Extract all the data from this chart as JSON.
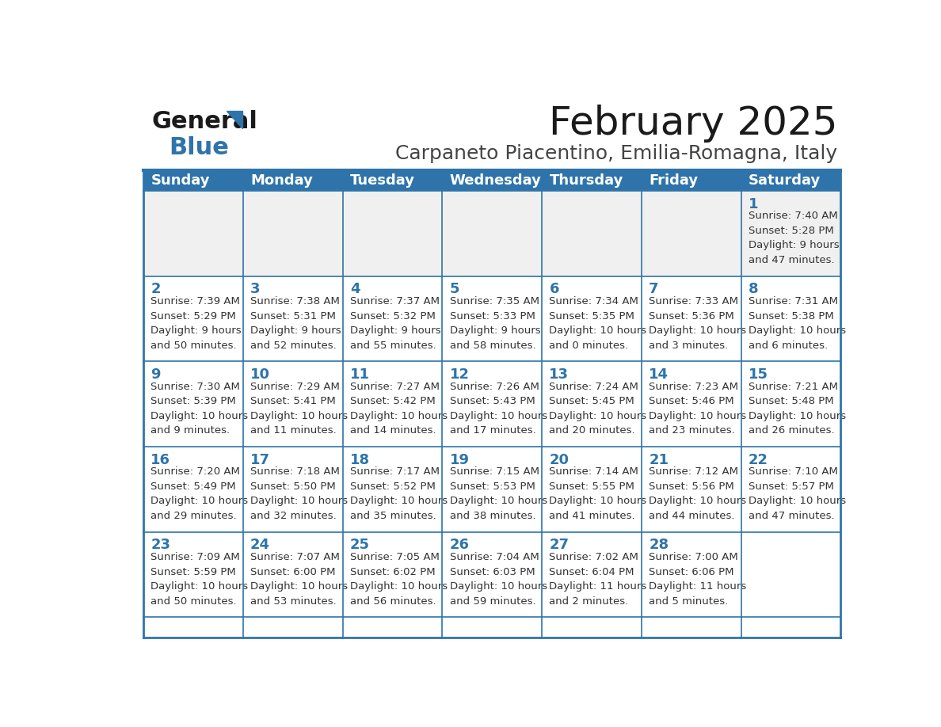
{
  "title": "February 2025",
  "subtitle": "Carpaneto Piacentino, Emilia-Romagna, Italy",
  "header_bg_color": "#2E74AA",
  "header_text_color": "#FFFFFF",
  "cell_bg_color": "#FFFFFF",
  "alt_cell_bg_color": "#F0F0F0",
  "day_number_color": "#2E74AA",
  "cell_text_color": "#333333",
  "border_color": "#2E74AA",
  "days_of_week": [
    "Sunday",
    "Monday",
    "Tuesday",
    "Wednesday",
    "Thursday",
    "Friday",
    "Saturday"
  ],
  "weeks": [
    [
      {
        "day": 0,
        "text": ""
      },
      {
        "day": 0,
        "text": ""
      },
      {
        "day": 0,
        "text": ""
      },
      {
        "day": 0,
        "text": ""
      },
      {
        "day": 0,
        "text": ""
      },
      {
        "day": 0,
        "text": ""
      },
      {
        "day": 1,
        "text": "Sunrise: 7:40 AM\nSunset: 5:28 PM\nDaylight: 9 hours\nand 47 minutes."
      }
    ],
    [
      {
        "day": 2,
        "text": "Sunrise: 7:39 AM\nSunset: 5:29 PM\nDaylight: 9 hours\nand 50 minutes."
      },
      {
        "day": 3,
        "text": "Sunrise: 7:38 AM\nSunset: 5:31 PM\nDaylight: 9 hours\nand 52 minutes."
      },
      {
        "day": 4,
        "text": "Sunrise: 7:37 AM\nSunset: 5:32 PM\nDaylight: 9 hours\nand 55 minutes."
      },
      {
        "day": 5,
        "text": "Sunrise: 7:35 AM\nSunset: 5:33 PM\nDaylight: 9 hours\nand 58 minutes."
      },
      {
        "day": 6,
        "text": "Sunrise: 7:34 AM\nSunset: 5:35 PM\nDaylight: 10 hours\nand 0 minutes."
      },
      {
        "day": 7,
        "text": "Sunrise: 7:33 AM\nSunset: 5:36 PM\nDaylight: 10 hours\nand 3 minutes."
      },
      {
        "day": 8,
        "text": "Sunrise: 7:31 AM\nSunset: 5:38 PM\nDaylight: 10 hours\nand 6 minutes."
      }
    ],
    [
      {
        "day": 9,
        "text": "Sunrise: 7:30 AM\nSunset: 5:39 PM\nDaylight: 10 hours\nand 9 minutes."
      },
      {
        "day": 10,
        "text": "Sunrise: 7:29 AM\nSunset: 5:41 PM\nDaylight: 10 hours\nand 11 minutes."
      },
      {
        "day": 11,
        "text": "Sunrise: 7:27 AM\nSunset: 5:42 PM\nDaylight: 10 hours\nand 14 minutes."
      },
      {
        "day": 12,
        "text": "Sunrise: 7:26 AM\nSunset: 5:43 PM\nDaylight: 10 hours\nand 17 minutes."
      },
      {
        "day": 13,
        "text": "Sunrise: 7:24 AM\nSunset: 5:45 PM\nDaylight: 10 hours\nand 20 minutes."
      },
      {
        "day": 14,
        "text": "Sunrise: 7:23 AM\nSunset: 5:46 PM\nDaylight: 10 hours\nand 23 minutes."
      },
      {
        "day": 15,
        "text": "Sunrise: 7:21 AM\nSunset: 5:48 PM\nDaylight: 10 hours\nand 26 minutes."
      }
    ],
    [
      {
        "day": 16,
        "text": "Sunrise: 7:20 AM\nSunset: 5:49 PM\nDaylight: 10 hours\nand 29 minutes."
      },
      {
        "day": 17,
        "text": "Sunrise: 7:18 AM\nSunset: 5:50 PM\nDaylight: 10 hours\nand 32 minutes."
      },
      {
        "day": 18,
        "text": "Sunrise: 7:17 AM\nSunset: 5:52 PM\nDaylight: 10 hours\nand 35 minutes."
      },
      {
        "day": 19,
        "text": "Sunrise: 7:15 AM\nSunset: 5:53 PM\nDaylight: 10 hours\nand 38 minutes."
      },
      {
        "day": 20,
        "text": "Sunrise: 7:14 AM\nSunset: 5:55 PM\nDaylight: 10 hours\nand 41 minutes."
      },
      {
        "day": 21,
        "text": "Sunrise: 7:12 AM\nSunset: 5:56 PM\nDaylight: 10 hours\nand 44 minutes."
      },
      {
        "day": 22,
        "text": "Sunrise: 7:10 AM\nSunset: 5:57 PM\nDaylight: 10 hours\nand 47 minutes."
      }
    ],
    [
      {
        "day": 23,
        "text": "Sunrise: 7:09 AM\nSunset: 5:59 PM\nDaylight: 10 hours\nand 50 minutes."
      },
      {
        "day": 24,
        "text": "Sunrise: 7:07 AM\nSunset: 6:00 PM\nDaylight: 10 hours\nand 53 minutes."
      },
      {
        "day": 25,
        "text": "Sunrise: 7:05 AM\nSunset: 6:02 PM\nDaylight: 10 hours\nand 56 minutes."
      },
      {
        "day": 26,
        "text": "Sunrise: 7:04 AM\nSunset: 6:03 PM\nDaylight: 10 hours\nand 59 minutes."
      },
      {
        "day": 27,
        "text": "Sunrise: 7:02 AM\nSunset: 6:04 PM\nDaylight: 11 hours\nand 2 minutes."
      },
      {
        "day": 28,
        "text": "Sunrise: 7:00 AM\nSunset: 6:06 PM\nDaylight: 11 hours\nand 5 minutes."
      },
      {
        "day": 0,
        "text": ""
      }
    ]
  ],
  "logo_text_general": "General",
  "logo_text_blue": "Blue",
  "logo_general_color": "#1a1a1a",
  "logo_blue_color": "#2E74AA",
  "title_fontsize": 36,
  "subtitle_fontsize": 18,
  "header_fontsize": 13,
  "day_num_fontsize": 13,
  "cell_text_fontsize": 9.5
}
